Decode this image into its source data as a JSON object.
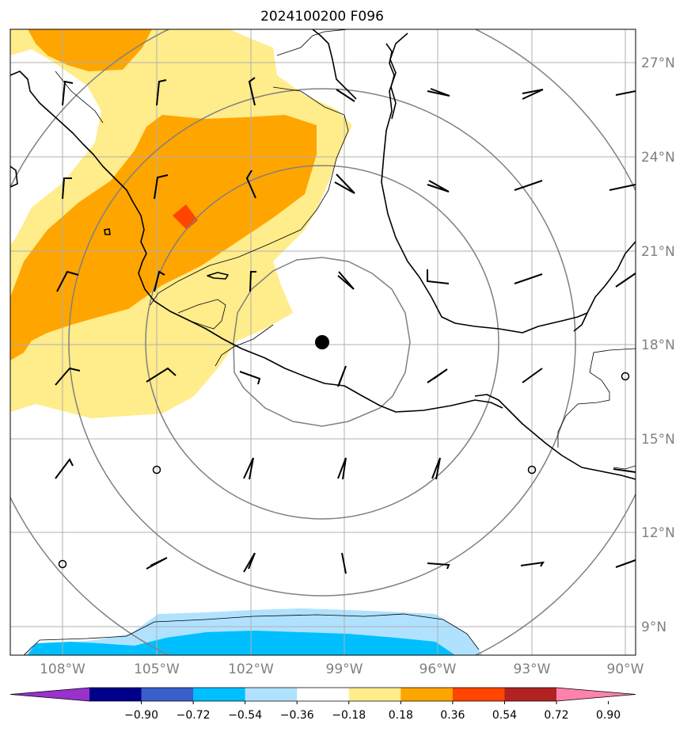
{
  "title": "2024100200 F096",
  "lat_labels": [
    "27°N",
    "24°N",
    "21°N",
    "18°N",
    "15°N",
    "12°N",
    "9°N"
  ],
  "lon_labels": [
    "108°W",
    "105°W",
    "102°W",
    "99°W",
    "96°W",
    "93°W",
    "90°W"
  ],
  "colorbar": {
    "ticks": [
      "−0.90",
      "−0.72",
      "−0.54",
      "−0.36",
      "−0.18",
      "0.18",
      "0.36",
      "0.54",
      "0.72",
      "0.90"
    ],
    "colors": [
      "#9932cc",
      "#00008b",
      "#3a5fcd",
      "#00bfff",
      "#b0e2ff",
      "#ffffff",
      "#ffec8b",
      "#ffa500",
      "#ff4500",
      "#b22222",
      "#ff82ab"
    ]
  },
  "map": {
    "lon_range": [
      -109.7,
      -89.7
    ],
    "lat_range": [
      8.1,
      28.0
    ],
    "storm_center": {
      "lon": -99.7,
      "lat": 18.1
    },
    "shading_levels": {
      "light_yellow": "0.18–0.36",
      "orange": "0.36–0.54",
      "red_orange": "0.54–0.72",
      "light_blue": "−0.36–−0.18",
      "deep_sky_blue": "−0.54–−0.36"
    }
  }
}
